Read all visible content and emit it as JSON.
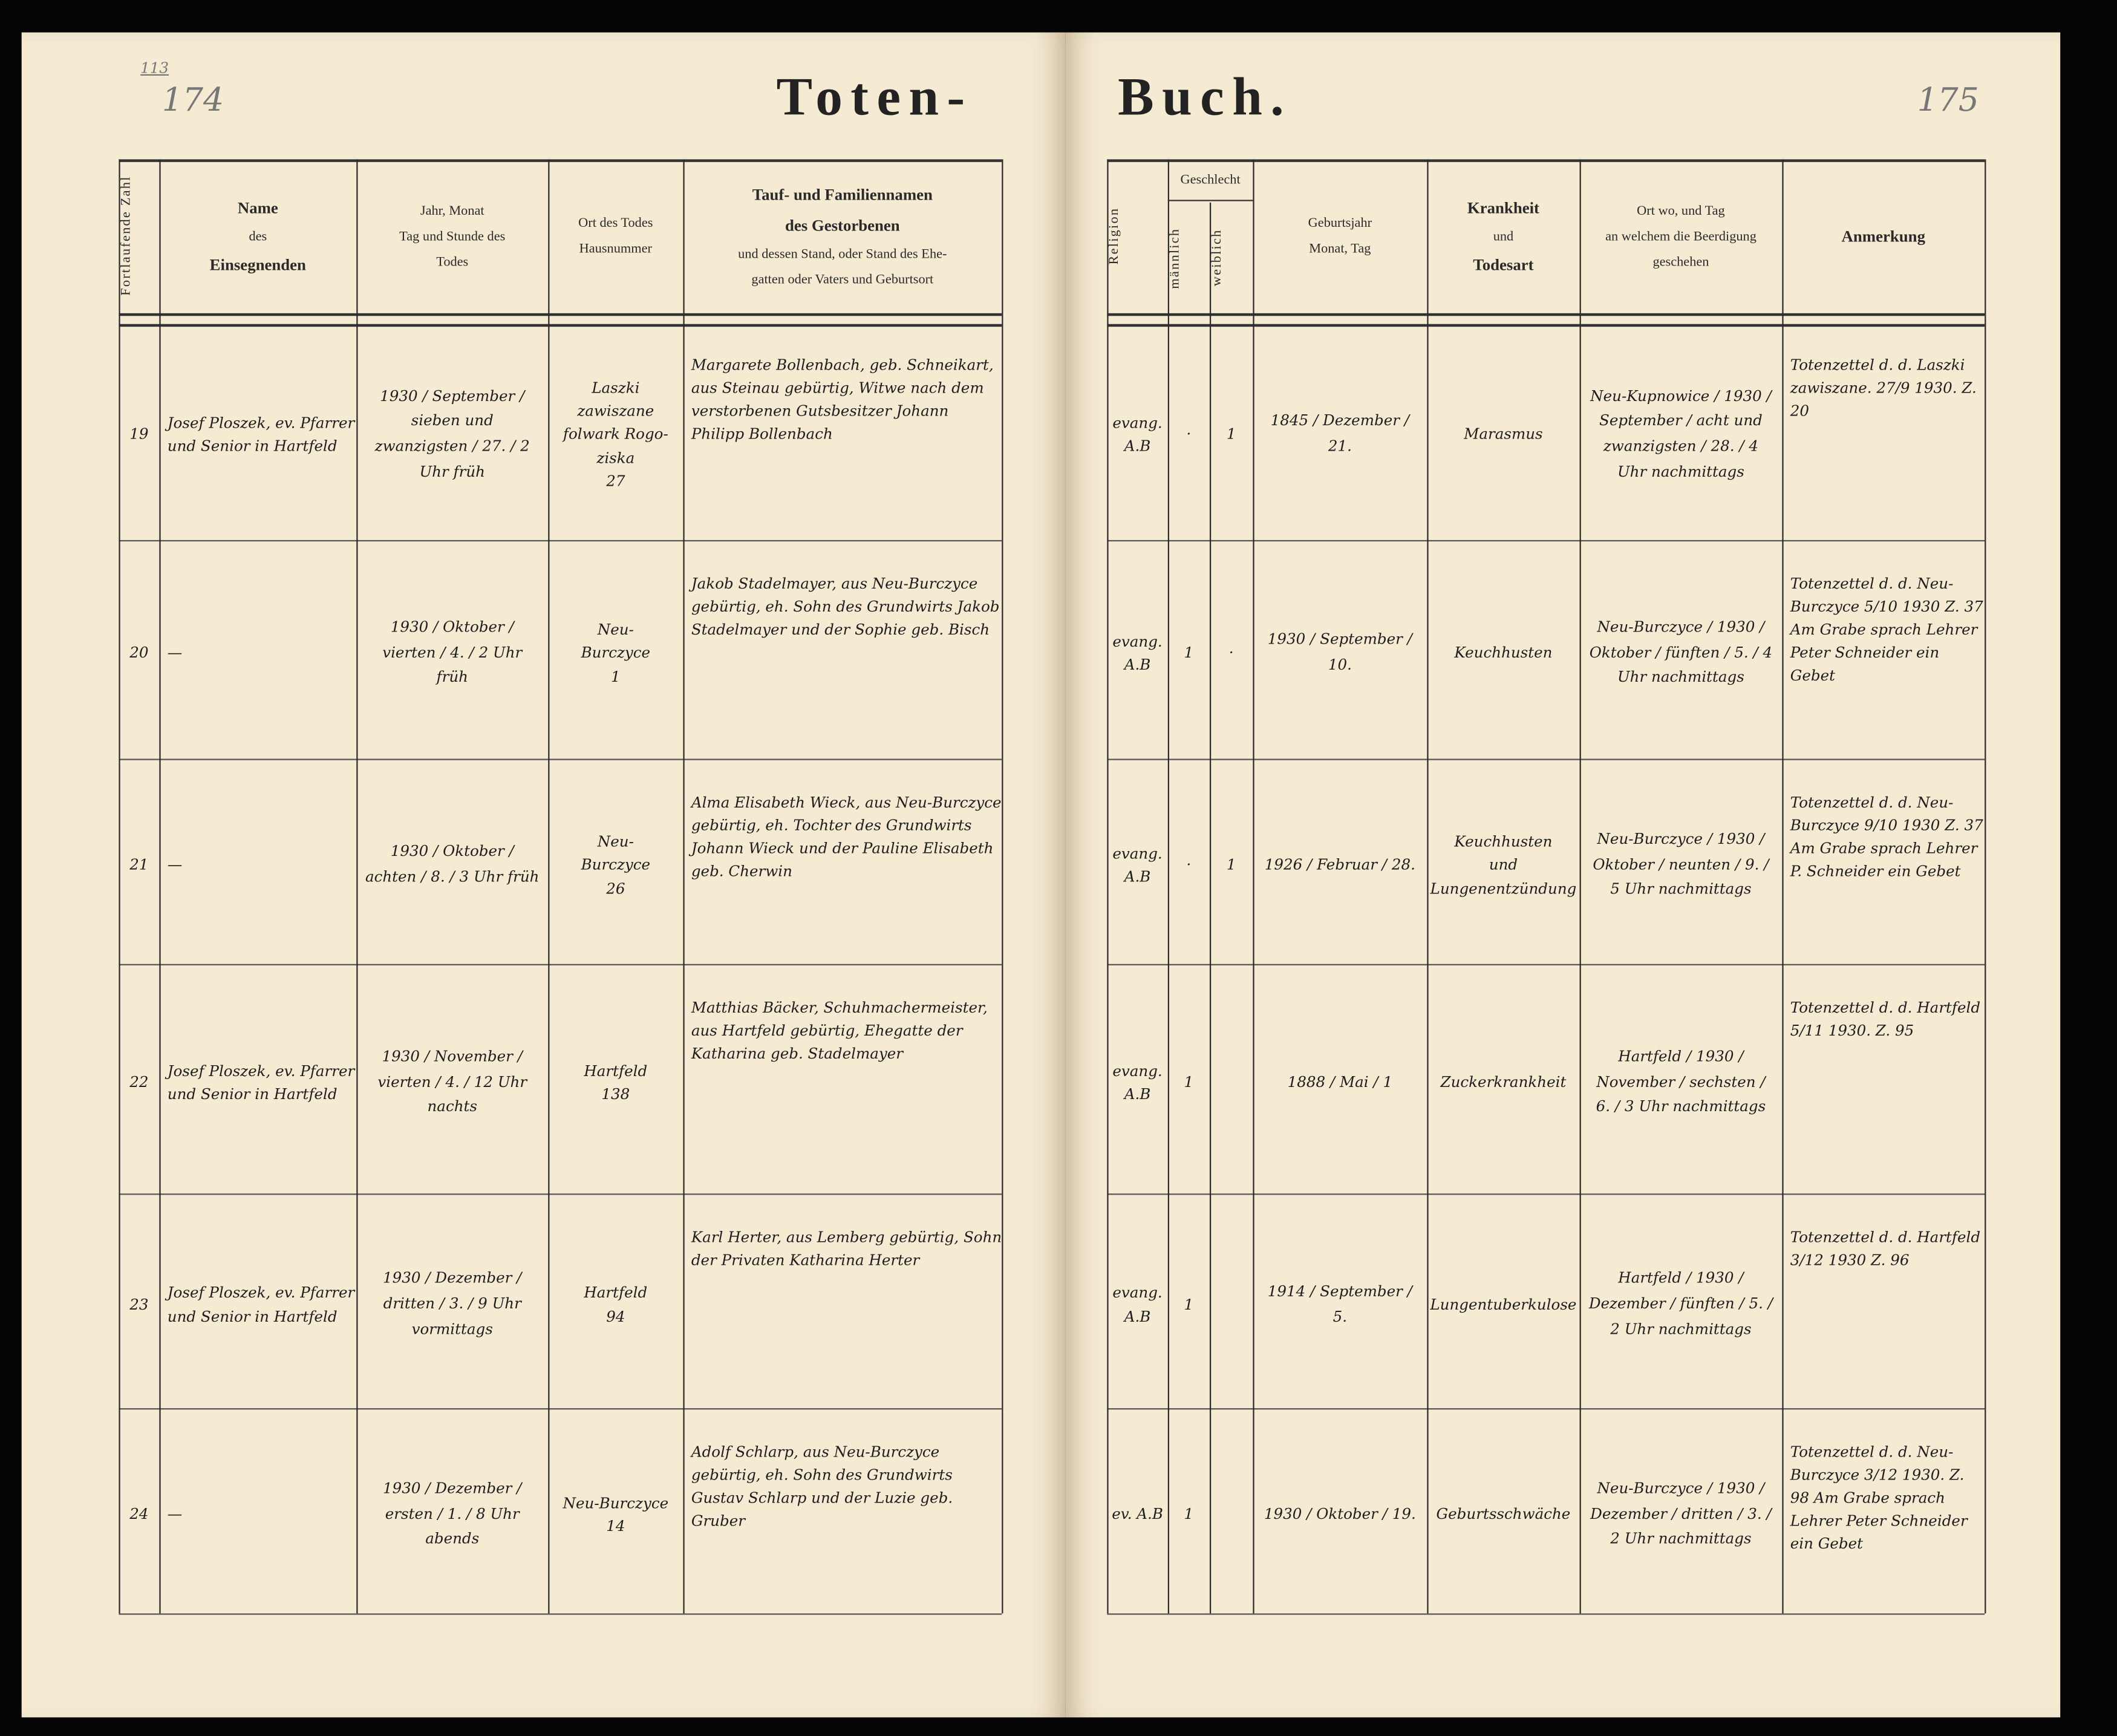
{
  "book": {
    "title_left": "Toten-",
    "title_right": "Buch.",
    "page_left": "174",
    "page_left_small": "113",
    "page_right": "175"
  },
  "headers": {
    "number": "Fortlaufende Zahl",
    "officiant": [
      "Name",
      "des",
      "Einsegnenden"
    ],
    "date": [
      "Jahr, Monat",
      "Tag und Stunde des",
      "Todes"
    ],
    "place": [
      "Ort des Todes",
      "Hausnummer"
    ],
    "deceased": [
      "Tauf- und Familiennamen",
      "des Gestorbenen",
      "und dessen Stand, oder Stand des Ehe-",
      "gatten oder Vaters und Geburtsort"
    ],
    "religion": "Religion",
    "sex": "Geschlecht",
    "male": "männlich",
    "female": "weiblich",
    "birth": [
      "Geburtsjahr",
      "Monat, Tag"
    ],
    "disease": [
      "Krankheit",
      "und",
      "Todesart"
    ],
    "burial": [
      "Ort wo, und Tag",
      "an welchem die Beerdigung",
      "geschehen"
    ],
    "remark": "Anmerkung"
  },
  "rows": [
    {
      "num": "19",
      "officiant": "Josef Ploszek, ev. Pfarrer und Senior in Hartfeld",
      "date": "1930 / September / sieben und zwanzigsten / 27. / 2 Uhr früh",
      "place": "Laszki / zawiszane / folwark Rogo- / ziska / 27",
      "deceased": "Margarete Bollenbach, geb. Schneikart, aus Steinau gebürtig, Witwe nach dem verstorbenen Gutsbesitzer Johann Philipp Bollenbach",
      "religion": "evang. A.B",
      "male": "·",
      "female": "1",
      "birth": "1845 / Dezember / 21.",
      "disease": "Marasmus",
      "burial": "Neu-Kupnowice / 1930 / September / acht und zwanzigsten / 28. / 4 Uhr nachmittags",
      "remark": "Totenzettel d. d. Laszki zawiszane. 27/9 1930. Z. 20"
    },
    {
      "num": "20",
      "officiant": "—",
      "date": "1930 / Oktober / vierten / 4. / 2 Uhr früh",
      "place": "Neu- / Burczyce / 1",
      "deceased": "Jakob Stadelmayer, aus Neu-Burczyce gebürtig, eh. Sohn des Grundwirts Jakob Stadelmayer und der Sophie geb. Bisch",
      "religion": "evang. A.B",
      "male": "1",
      "female": "·",
      "birth": "1930 / September / 10.",
      "disease": "Keuchhusten",
      "burial": "Neu-Burczyce / 1930 / Oktober / fünften / 5. / 4 Uhr nachmittags",
      "remark": "Totenzettel d. d. Neu-Burczyce 5/10 1930 Z. 37 Am Grabe sprach Lehrer Peter Schneider ein Gebet"
    },
    {
      "num": "21",
      "officiant": "—",
      "date": "1930 / Oktober / achten / 8. / 3 Uhr früh",
      "place": "Neu- / Burczyce / 26",
      "deceased": "Alma Elisabeth Wieck, aus Neu-Burczyce gebürtig, eh. Tochter des Grundwirts Johann Wieck und der Pauline Elisabeth geb. Cherwin",
      "religion": "evang. A.B",
      "male": "·",
      "female": "1",
      "birth": "1926 / Februar / 28.",
      "disease": "Keuchhusten / und Lungenentzündung",
      "burial": "Neu-Burczyce / 1930 / Oktober / neunten / 9. / 5 Uhr nachmittags",
      "remark": "Totenzettel d. d. Neu-Burczyce 9/10 1930 Z. 37 Am Grabe sprach Lehrer P. Schneider ein Gebet"
    },
    {
      "num": "22",
      "officiant": "Josef Ploszek, ev. Pfarrer und Senior in Hartfeld",
      "date": "1930 / November / vierten / 4. / 12 Uhr nachts",
      "place": "Hartfeld / 138",
      "deceased": "Matthias Bäcker, Schuhmachermeister, aus Hartfeld gebürtig, Ehegatte der Katharina geb. Stadelmayer",
      "religion": "evang. A.B",
      "male": "1",
      "female": "",
      "birth": "1888 / Mai / 1",
      "disease": "Zuckerkrankheit",
      "burial": "Hartfeld / 1930 / November / sechsten / 6. / 3 Uhr nachmittags",
      "remark": "Totenzettel d. d. Hartfeld 5/11 1930. Z. 95"
    },
    {
      "num": "23",
      "officiant": "Josef Ploszek, ev. Pfarrer und Senior in Hartfeld",
      "date": "1930 / Dezember / dritten / 3. / 9 Uhr vormittags",
      "place": "Hartfeld / 94",
      "deceased": "Karl Herter, aus Lemberg gebürtig, Sohn der Privaten Katharina Herter",
      "religion": "evang. A.B",
      "male": "1",
      "female": "",
      "birth": "1914 / September / 5.",
      "disease": "Lungentuberkulose",
      "burial": "Hartfeld / 1930 / Dezember / fünften / 5. / 2 Uhr nachmittags",
      "remark": "Totenzettel d. d. Hartfeld 3/12 1930 Z. 96"
    },
    {
      "num": "24",
      "officiant": "—",
      "date": "1930 / Dezember / ersten / 1. / 8 Uhr abends",
      "place": "Neu-Burczyce / 14",
      "deceased": "Adolf Schlarp, aus Neu-Burczyce gebürtig, eh. Sohn des Grundwirts Gustav Schlarp und der Luzie geb. Gruber",
      "religion": "ev. A.B",
      "male": "1",
      "female": "",
      "birth": "1930 / Oktober / 19.",
      "disease": "Geburtsschwäche",
      "burial": "Neu-Burczyce / 1930 / Dezember / dritten / 3. / 2 Uhr nachmittags",
      "remark": "Totenzettel d. d. Neu-Burczyce 3/12 1930. Z. 98 Am Grabe sprach Lehrer Peter Schneider ein Gebet"
    }
  ]
}
